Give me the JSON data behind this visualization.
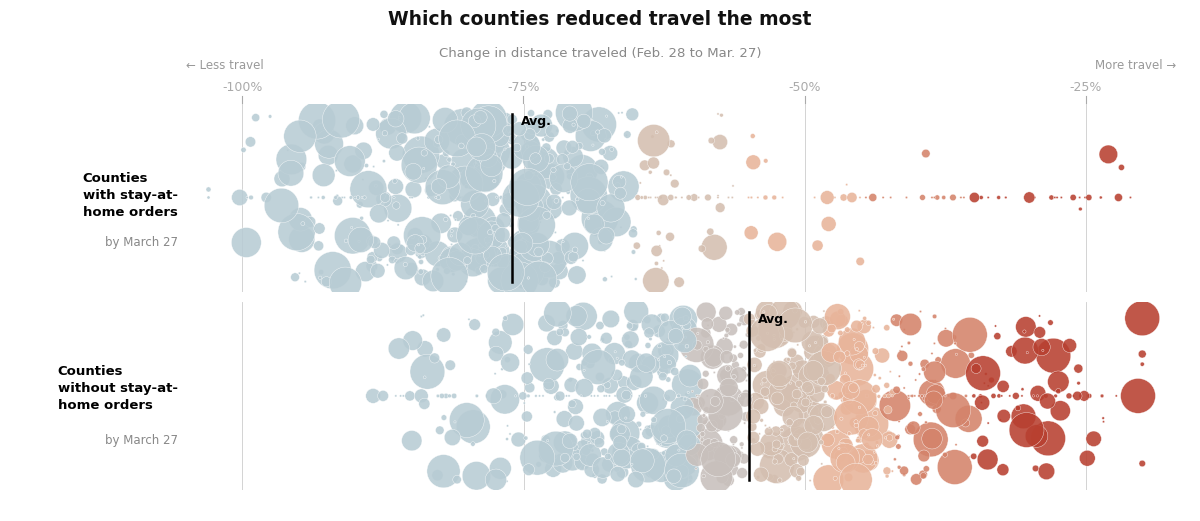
{
  "title": "Which counties reduced travel the most",
  "subtitle": "Change in distance traveled (Feb. 28 to Mar. 27)",
  "less_travel_label": "← Less travel",
  "more_travel_label": "More travel →",
  "avg_label": "Avg.",
  "group1_label_bold": "Counties\nwith stay-at-\nhome orders",
  "group1_label_sub": "by March 27",
  "group2_label_bold": "Counties\nwithout stay-at-\nhome orders",
  "group2_label_sub": "by March 27",
  "x_ticks": [
    -100,
    -75,
    -50,
    -25
  ],
  "x_tick_labels": [
    "-100%",
    "-75%",
    "-50%",
    "-25%"
  ],
  "avg1": -76,
  "avg2": -55,
  "xlim": [
    -105,
    -17
  ],
  "color_blue": "#b8ccd4",
  "color_tan": "#d4bfb0",
  "color_orange_light": "#e8b49a",
  "color_orange_mid": "#d4836a",
  "color_red": "#b84030",
  "color_axis": "#aaaaaa",
  "color_title": "#111111",
  "color_subtitle": "#888888",
  "color_direction": "#999999",
  "background": "#ffffff"
}
